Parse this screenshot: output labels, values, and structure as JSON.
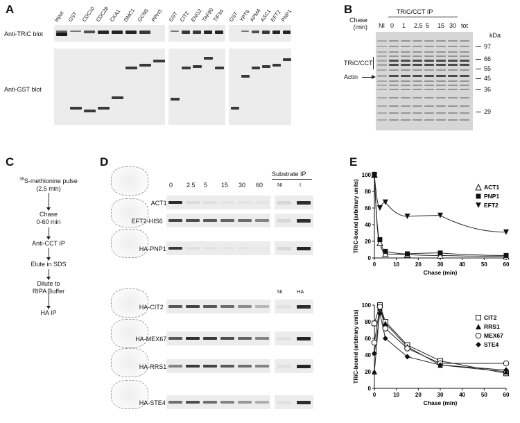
{
  "panels": {
    "A": {
      "label": "A",
      "lanes_group1": [
        "input",
        "GST",
        "CDC10",
        "CDC28",
        "CKA1",
        "DMC1",
        "GCN5",
        "PPH3"
      ],
      "lanes_group2": [
        "GST",
        "CIT2",
        "ENO2",
        "TAF90",
        "TIF34"
      ],
      "lanes_group3": [
        "GST",
        "YPT6",
        "APM4",
        "ASC1",
        "EFT2",
        "PNP1"
      ],
      "row1_label": "Anti-TRiC blot",
      "row2_label": "Anti-GST blot"
    },
    "B": {
      "label": "B",
      "chase_label": "Chase\n(min)",
      "ip_label": "TRiC/CCT IP",
      "lanes": [
        "NI",
        "0",
        "1",
        "2.5",
        "5",
        "15",
        "30",
        "tot"
      ],
      "kda_label": "kDa",
      "markers": [
        "97",
        "66",
        "55",
        "45",
        "36",
        "29"
      ],
      "tric_label": "TRiC/CCT",
      "actin_label": "Actin"
    },
    "C": {
      "label": "C",
      "steps": [
        "35S-methionine pulse\n(2.5 min)",
        "Chase\n0-60 min",
        "Anti-CCT IP",
        "Elute in SDS",
        "Dilute to\nRIPA Buffer",
        "HA IP"
      ],
      "superscript": "35"
    },
    "D": {
      "label": "D",
      "timepoints": [
        "0",
        "2.5",
        "5",
        "15",
        "30",
        "60"
      ],
      "substrate_ip": "Substrate IP",
      "ni": "NI",
      "i": "I",
      "ni2": "NI",
      "ha": "HA",
      "proteins_top": [
        "ACT1",
        "EFT2-HIS6",
        "HA-PNP1"
      ],
      "proteins_bottom": [
        "HA-CIT2",
        "HA-MEX67",
        "HA-RRS1",
        "HA-STE4"
      ]
    },
    "E": {
      "label": "E"
    }
  },
  "chart_data": [
    {
      "type": "scatter",
      "ylabel": "TRiC-bound (arbitrary units)",
      "xlabel": "Chase (min)",
      "xlim": [
        0,
        60
      ],
      "ylim": [
        0,
        100
      ],
      "xticks": [
        0,
        10,
        20,
        30,
        40,
        50,
        60
      ],
      "yticks": [
        0,
        20,
        40,
        60,
        80,
        100
      ],
      "legend_position": "top-right",
      "series": [
        {
          "name": "ACT1",
          "marker": "open-triangle",
          "x": [
            0,
            2.5,
            5,
            15,
            30,
            60
          ],
          "y": [
            100,
            18,
            5,
            4,
            3,
            2
          ]
        },
        {
          "name": "PNP1",
          "marker": "filled-square",
          "x": [
            0,
            2.5,
            5,
            15,
            30,
            60
          ],
          "y": [
            100,
            22,
            8,
            5,
            6,
            3
          ]
        },
        {
          "name": "EFT2",
          "marker": "filled-down-triangle",
          "x": [
            0,
            2.5,
            5,
            15,
            30,
            60
          ],
          "y": [
            100,
            60,
            67,
            50,
            51,
            31
          ]
        }
      ]
    },
    {
      "type": "scatter",
      "ylabel": "TRiC-bound (arbitrary units)",
      "xlabel": "Chase (min)",
      "xlim": [
        0,
        60
      ],
      "ylim": [
        0,
        100
      ],
      "xticks": [
        0,
        10,
        20,
        30,
        40,
        50,
        60
      ],
      "yticks": [
        0,
        20,
        40,
        60,
        80,
        100
      ],
      "legend_position": "top-right",
      "series": [
        {
          "name": "CIT2",
          "marker": "open-square",
          "x": [
            0,
            2.5,
            5,
            15,
            30,
            60
          ],
          "y": [
            78,
            100,
            80,
            52,
            33,
            18
          ]
        },
        {
          "name": "RRS1",
          "marker": "filled-triangle",
          "x": [
            0,
            2.5,
            5,
            15,
            30,
            60
          ],
          "y": [
            20,
            97,
            78,
            50,
            28,
            20
          ]
        },
        {
          "name": "MEX67",
          "marker": "open-circle",
          "x": [
            0,
            2.5,
            5,
            15,
            30,
            60
          ],
          "y": [
            55,
            98,
            72,
            48,
            30,
            30
          ]
        },
        {
          "name": "STE4",
          "marker": "filled-diamond",
          "x": [
            0,
            2.5,
            5,
            15,
            30,
            60
          ],
          "y": [
            42,
            90,
            60,
            38,
            28,
            22
          ]
        }
      ]
    }
  ]
}
